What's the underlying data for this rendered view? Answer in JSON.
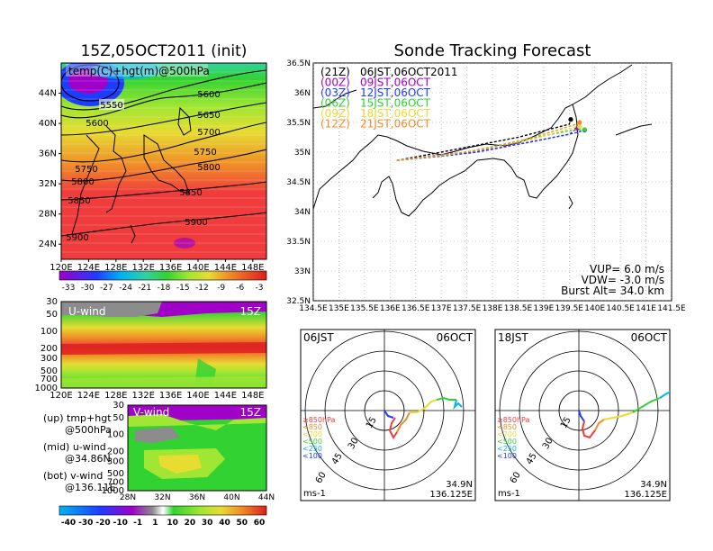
{
  "colors": {
    "purple": "#a000c8",
    "blue": "#1e3cff",
    "cyan": "#00b4f0",
    "green": "#32d232",
    "lime": "#a0e632",
    "yellow": "#e6dc32",
    "orange": "#f08c28",
    "red": "#f03c3c",
    "deepred": "#dc1e1e",
    "gray": "#8c8c8c",
    "black": "#000000"
  },
  "chart_data": [
    {
      "id": "temp-hgt-map",
      "type": "heatmap",
      "title": "15Z,05OCT2011 (init)",
      "label": "temp(C)+hgt(m)@500hPa",
      "x_ticks": [
        "120E",
        "124E",
        "128E",
        "132E",
        "136E",
        "140E",
        "144E",
        "148E"
      ],
      "y_ticks": [
        "24N",
        "28N",
        "32N",
        "36N",
        "40N",
        "44N"
      ],
      "xlim": [
        120,
        150
      ],
      "ylim": [
        22,
        48
      ],
      "contour_labels": [
        "5550",
        "5600",
        "5600",
        "5650",
        "5700",
        "5750",
        "5750",
        "5800",
        "5800",
        "5850",
        "5850",
        "5900",
        "5900"
      ],
      "colorbar": [
        "-33",
        "-30",
        "-27",
        "-24",
        "-21",
        "-18",
        "-15",
        "-12",
        "-9",
        "-6",
        "-3"
      ]
    },
    {
      "id": "sonde-track",
      "type": "line",
      "title": "Sonde Tracking Forecast",
      "x_ticks": [
        "134.5E",
        "135E",
        "135.5E",
        "136E",
        "136.5E",
        "137E",
        "137.5E",
        "138E",
        "138.5E",
        "139E",
        "139.5E",
        "140E",
        "140.5E",
        "141E",
        "141.5E"
      ],
      "y_ticks": [
        "32.5N",
        "33N",
        "33.5N",
        "34N",
        "34.5N",
        "35N",
        "35.5N",
        "36N",
        "36.5N"
      ],
      "xlim": [
        134.5,
        141.5
      ],
      "ylim": [
        32.5,
        36.5
      ],
      "legend": [
        {
          "code": "(21Z)",
          "time": "06JST,06OCT2011",
          "color": "#000000"
        },
        {
          "code": "(00Z)",
          "time": "09JST,06OCT",
          "color": "#a000c8"
        },
        {
          "code": "(03Z)",
          "time": "12JST,06OCT",
          "color": "#1e3cff"
        },
        {
          "code": "(06Z)",
          "time": "15JST,06OCT",
          "color": "#32d232"
        },
        {
          "code": "(09Z)",
          "time": "18JST,06OCT",
          "color": "#e6dc32"
        },
        {
          "code": "(12Z)",
          "time": "21JST,06OCT",
          "color": "#f08c28"
        }
      ],
      "tracks": [
        {
          "color": "#000000",
          "x": [
            136.13,
            137.0,
            137.3,
            138.5,
            139.5,
            139.53
          ],
          "y": [
            34.86,
            35.0,
            35.05,
            35.25,
            35.47,
            35.55
          ]
        },
        {
          "color": "#a000c8",
          "x": [
            136.13,
            137.2,
            137.6,
            138.6,
            139.5,
            139.65
          ],
          "y": [
            34.86,
            34.98,
            34.99,
            35.15,
            35.3,
            35.4
          ]
        },
        {
          "color": "#1e3cff",
          "x": [
            136.13,
            137.1,
            137.7,
            138.8,
            139.6,
            139.8
          ],
          "y": [
            34.86,
            34.94,
            35.0,
            35.18,
            35.32,
            35.37
          ]
        },
        {
          "color": "#32d232",
          "x": [
            136.13,
            137.1,
            137.6,
            138.7,
            139.6,
            139.8
          ],
          "y": [
            34.86,
            34.95,
            35.02,
            35.22,
            35.38,
            35.38
          ]
        },
        {
          "color": "#e6dc32",
          "x": [
            136.13,
            137.2,
            137.7,
            138.8,
            139.6,
            139.7
          ],
          "y": [
            34.86,
            34.97,
            35.03,
            35.22,
            35.42,
            35.43
          ]
        },
        {
          "color": "#f08c28",
          "x": [
            136.13,
            137.3,
            137.8,
            138.8,
            139.6,
            139.7
          ],
          "y": [
            34.86,
            34.98,
            35.04,
            35.25,
            35.46,
            35.5
          ]
        }
      ],
      "notes": [
        "VUP= 6.0  m/s",
        "VDW= -3.0  m/s",
        "Burst Alt= 34.0  km"
      ]
    },
    {
      "id": "u-wind-section",
      "type": "heatmap",
      "label": "U-wind",
      "time": "15Z",
      "x_ticks": [
        "120E",
        "124E",
        "128E",
        "132E",
        "136E",
        "140E",
        "144E",
        "148E"
      ],
      "y_ticks": [
        "30",
        "50",
        "100",
        "200",
        "300",
        "500",
        "700",
        "1000"
      ]
    },
    {
      "id": "v-wind-section",
      "type": "heatmap",
      "label": "V-wind",
      "time": "15Z",
      "x_ticks": [
        "28N",
        "32N",
        "36N",
        "40N",
        "44N"
      ],
      "y_ticks": [
        "30",
        "50",
        "100",
        "200",
        "300",
        "500",
        "700",
        "1000"
      ],
      "colorbar": [
        "-40",
        "-30",
        "-20",
        "-10",
        "-1",
        "1",
        "10",
        "20",
        "30",
        "40",
        "50",
        "60"
      ]
    },
    {
      "id": "hodograph-06jst",
      "type": "line",
      "time_label": "06JST",
      "date_label": "06OCT",
      "unit": "ms-1",
      "ring_labels": [
        "15",
        "30",
        "45",
        "60"
      ],
      "legend": [
        {
          "label": "≥850hPa",
          "color": "#f03c3c"
        },
        {
          "label": "<850",
          "color": "#f08c28"
        },
        {
          "label": "<700",
          "color": "#e6dc32"
        },
        {
          "label": "<500",
          "color": "#32d232"
        },
        {
          "label": "<250",
          "color": "#00b4f0"
        },
        {
          "label": "<100",
          "color": "#1e3cff"
        }
      ],
      "location": [
        "34.9N",
        "136.125E"
      ]
    },
    {
      "id": "hodograph-18jst",
      "type": "line",
      "time_label": "18JST",
      "date_label": "06OCT",
      "unit": "ms-1",
      "ring_labels": [
        "15",
        "30",
        "45",
        "60"
      ],
      "legend": [
        {
          "label": "≥850hPa",
          "color": "#f03c3c"
        },
        {
          "label": "<850",
          "color": "#f08c28"
        },
        {
          "label": "<700",
          "color": "#e6dc32"
        },
        {
          "label": "<500",
          "color": "#32d232"
        },
        {
          "label": "<250",
          "color": "#00b4f0"
        },
        {
          "label": "<100",
          "color": "#1e3cff"
        }
      ],
      "location": [
        "34.9N",
        "136.125E"
      ]
    }
  ],
  "side_text": {
    "line1a": "(up) tmp+hgt",
    "line1b": "@500hPa",
    "line2a": "(mid) u-wind",
    "line2b": "@34.86N",
    "line3a": "(bot) v-wind",
    "line3b": "@136.11E"
  }
}
